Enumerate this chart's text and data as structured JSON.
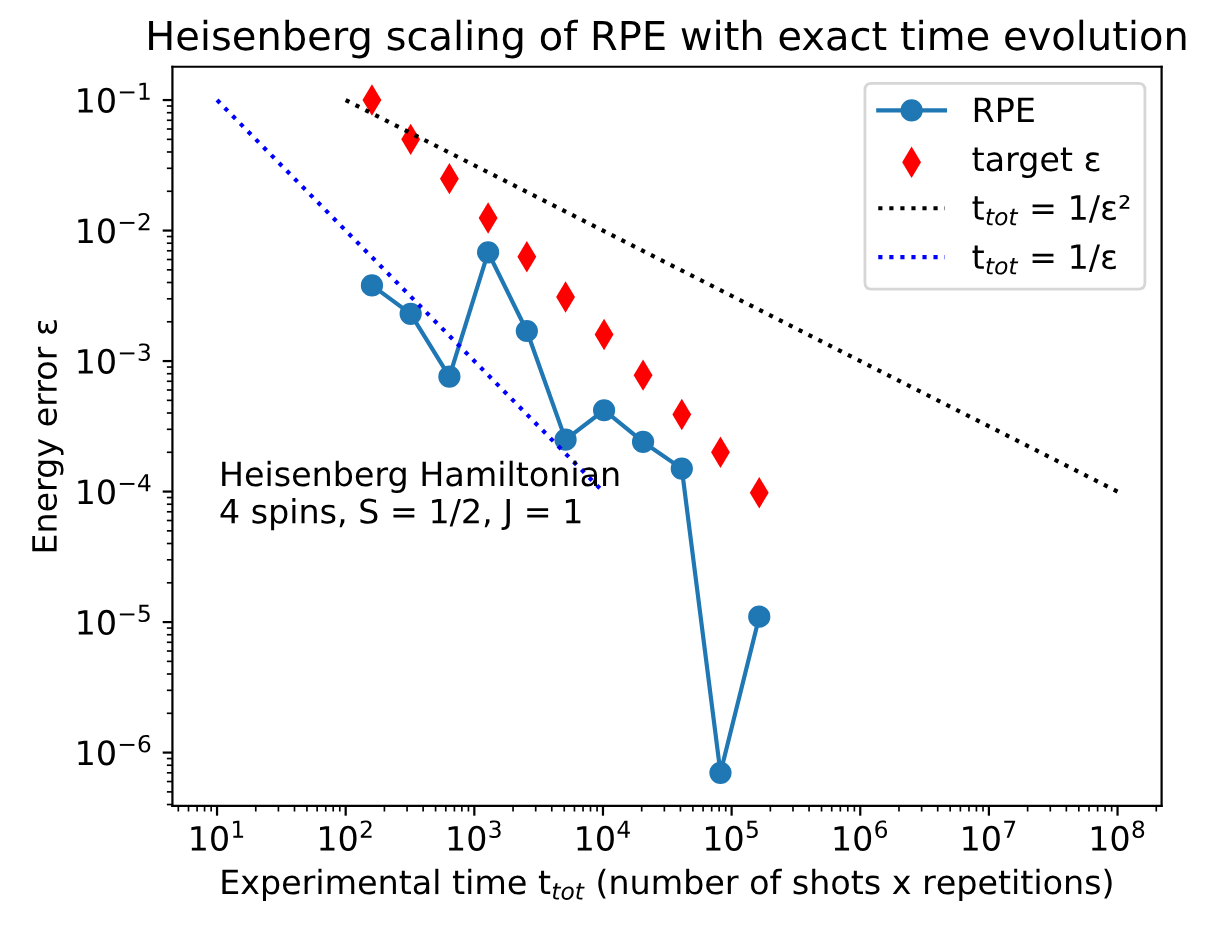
{
  "chart_data": {
    "type": "line",
    "title": "Heisenberg scaling of RPE with exact time evolution",
    "xlabel": "Experimental time t$_{tot}$ (number of shots x repetitions)",
    "ylabel": "Energy error ε",
    "annotations": [
      "Heisenberg Hamiltonian\n4 spins, S = 1/2, J = 1"
    ],
    "log": "xy",
    "legend": "top right",
    "xlim": [
      4.5,
      220000000
    ],
    "ylim": [
      3.9e-07,
      0.18
    ],
    "xticks": [
      {
        "value": 10,
        "label": "10$^{1}$"
      },
      {
        "value": 100,
        "label": "10$^{2}$"
      },
      {
        "value": 1000,
        "label": "10$^{3}$"
      },
      {
        "value": 10000,
        "label": "10$^{4}$"
      },
      {
        "value": 100000,
        "label": "10$^{5}$"
      },
      {
        "value": 1000000,
        "label": "10$^{6}$"
      },
      {
        "value": 10000000,
        "label": "10$^{7}$"
      },
      {
        "value": 100000000,
        "label": "10$^{8}$"
      }
    ],
    "yticks": [
      {
        "value": 1e-06,
        "label": "10$^{−6}$"
      },
      {
        "value": 1e-05,
        "label": "10$^{−5}$"
      },
      {
        "value": 0.0001,
        "label": "10$^{−4}$"
      },
      {
        "value": 0.001,
        "label": "10$^{−3}$"
      },
      {
        "value": 0.01,
        "label": "10$^{−2}$"
      },
      {
        "value": 0.1,
        "label": "10$^{−1}$"
      }
    ],
    "series": [
      {
        "name": "RPE",
        "type": "line",
        "color": "#1f77b4",
        "marker": "circle",
        "line_style": "solid",
        "x": [
          160,
          320,
          640,
          1280,
          2560,
          5120,
          10200,
          20500,
          41000,
          81900,
          164000
        ],
        "values": [
          0.0038,
          0.0023,
          0.00076,
          0.0068,
          0.0017,
          0.00025,
          0.00042,
          0.00024,
          0.00015,
          7e-07,
          1.1e-05
        ]
      },
      {
        "name": "target ε",
        "type": "scatter",
        "color": "#ff0000",
        "marker": "diamond",
        "x": [
          160,
          320,
          640,
          1280,
          2560,
          5120,
          10200,
          20500,
          41000,
          81900,
          164000
        ],
        "values": [
          0.1,
          0.05,
          0.025,
          0.0125,
          0.0063,
          0.0031,
          0.0016,
          0.00078,
          0.00039,
          0.0002,
          9.8e-05
        ]
      },
      {
        "name": "t$_{tot}$ = 1/ε²",
        "type": "line",
        "color": "#000000",
        "marker": "none",
        "line_style": "dotted",
        "x": [
          100,
          100000000
        ],
        "values": [
          0.1,
          0.0001
        ]
      },
      {
        "name": "t$_{tot}$ = 1/ε",
        "type": "line",
        "color": "#0000ff",
        "marker": "none",
        "line_style": "dotted",
        "x": [
          10,
          10000
        ],
        "values": [
          0.1,
          0.0001
        ]
      }
    ]
  }
}
